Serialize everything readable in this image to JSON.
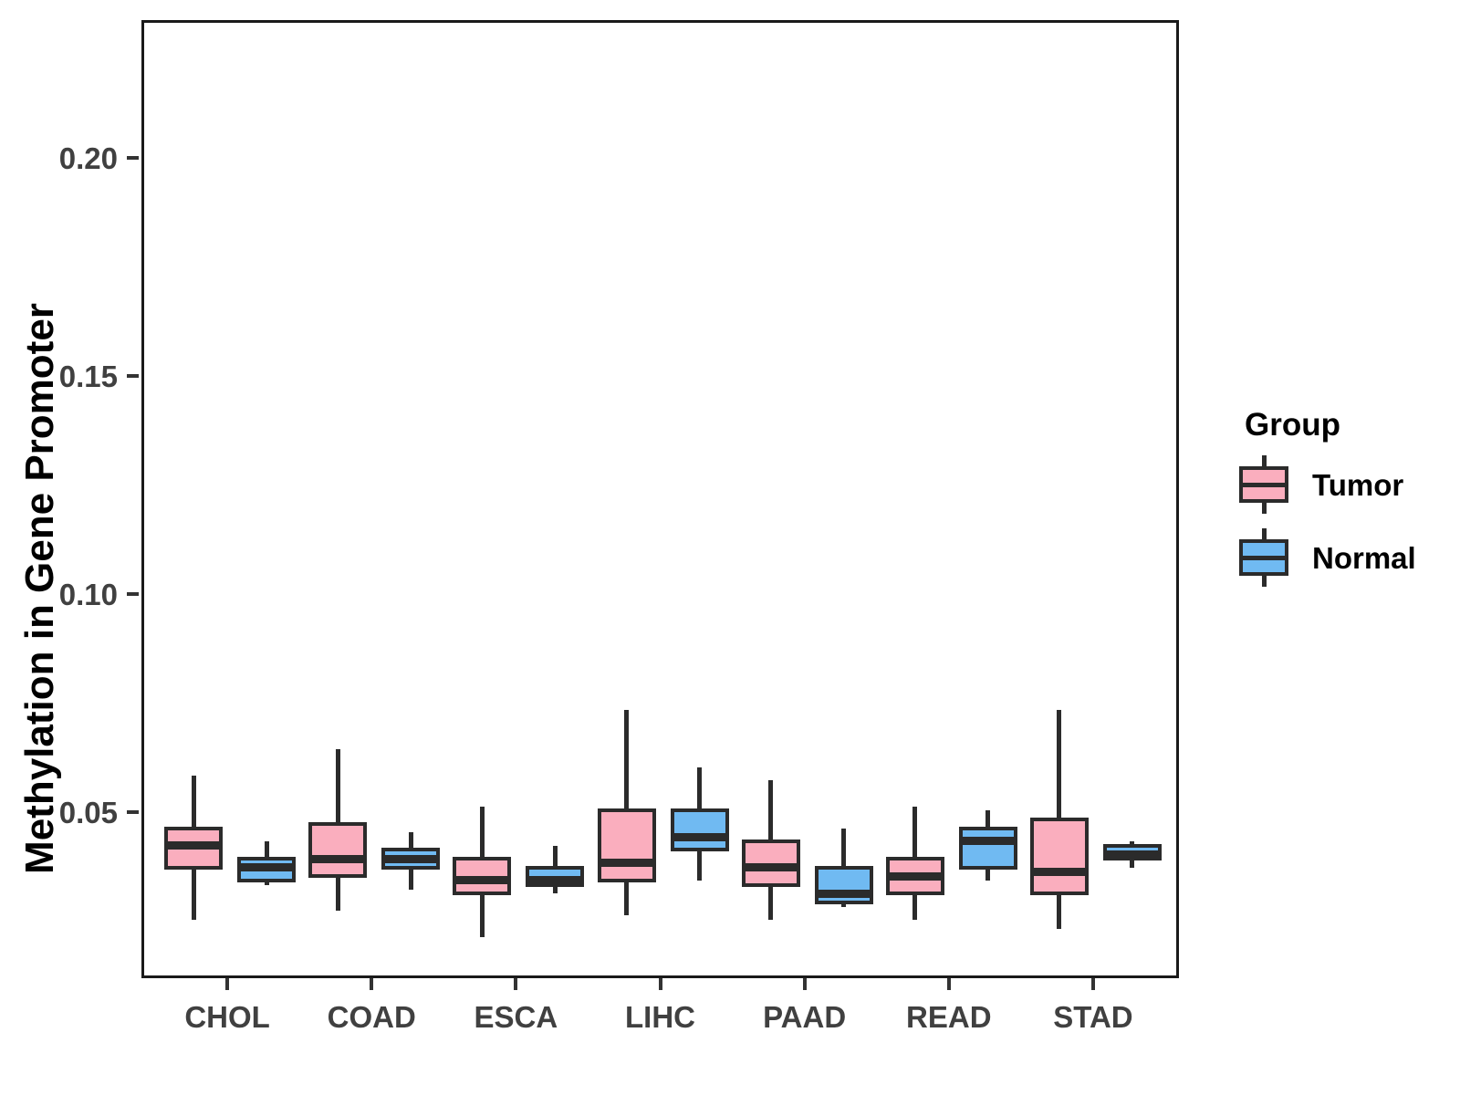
{
  "chart_data": {
    "type": "boxplot",
    "title": "",
    "xlabel": "",
    "ylabel": "Methylation in Gene Promoter",
    "categories": [
      "CHOL",
      "COAD",
      "ESCA",
      "LIHC",
      "PAAD",
      "READ",
      "STAD"
    ],
    "y_ticks": [
      0.05,
      0.1,
      0.15,
      0.2
    ],
    "y_tick_labels": [
      "0.05",
      "0.10",
      "0.15",
      "0.20"
    ],
    "ylim": [
      0.012,
      0.2315
    ],
    "grid": "off",
    "legend": {
      "title": "Group",
      "position": "right",
      "items": [
        {
          "label": "Tumor",
          "color": "#FAAEBE"
        },
        {
          "label": "Normal",
          "color": "#70BAF2"
        }
      ]
    },
    "series": [
      {
        "name": "Tumor",
        "color": "#FAAEBE",
        "boxes": [
          {
            "category": "CHOL",
            "min": 0.026,
            "q1": 0.038,
            "median": 0.043,
            "q3": 0.047,
            "max": 0.059
          },
          {
            "category": "COAD",
            "min": 0.028,
            "q1": 0.036,
            "median": 0.04,
            "q3": 0.048,
            "max": 0.065
          },
          {
            "category": "ESCA",
            "min": 0.022,
            "q1": 0.032,
            "median": 0.035,
            "q3": 0.04,
            "max": 0.052
          },
          {
            "category": "LIHC",
            "min": 0.027,
            "q1": 0.035,
            "median": 0.039,
            "q3": 0.051,
            "max": 0.074
          },
          {
            "category": "PAAD",
            "min": 0.026,
            "q1": 0.034,
            "median": 0.038,
            "q3": 0.044,
            "max": 0.058
          },
          {
            "category": "READ",
            "min": 0.026,
            "q1": 0.032,
            "median": 0.036,
            "q3": 0.04,
            "max": 0.052
          },
          {
            "category": "STAD",
            "min": 0.024,
            "q1": 0.032,
            "median": 0.037,
            "q3": 0.049,
            "max": 0.074
          }
        ]
      },
      {
        "name": "Normal",
        "color": "#70BAF2",
        "boxes": [
          {
            "category": "CHOL",
            "min": 0.034,
            "q1": 0.035,
            "median": 0.038,
            "q3": 0.04,
            "max": 0.044
          },
          {
            "category": "COAD",
            "min": 0.033,
            "q1": 0.038,
            "median": 0.04,
            "q3": 0.042,
            "max": 0.046
          },
          {
            "category": "ESCA",
            "min": 0.032,
            "q1": 0.034,
            "median": 0.035,
            "q3": 0.038,
            "max": 0.043
          },
          {
            "category": "LIHC",
            "min": 0.035,
            "q1": 0.042,
            "median": 0.045,
            "q3": 0.051,
            "max": 0.061
          },
          {
            "category": "PAAD",
            "min": 0.029,
            "q1": 0.03,
            "median": 0.032,
            "q3": 0.038,
            "max": 0.047
          },
          {
            "category": "READ",
            "min": 0.035,
            "q1": 0.038,
            "median": 0.044,
            "q3": 0.047,
            "max": 0.051
          },
          {
            "category": "STAD",
            "min": 0.038,
            "q1": 0.04,
            "median": 0.041,
            "q3": 0.043,
            "max": 0.044
          }
        ]
      }
    ]
  },
  "style": {
    "line_color": "#2b2b2b",
    "panel_border_color": "#1a1a1a",
    "tick_color": "#333333",
    "axis_text_color": "#404040",
    "background": "#ffffff"
  }
}
